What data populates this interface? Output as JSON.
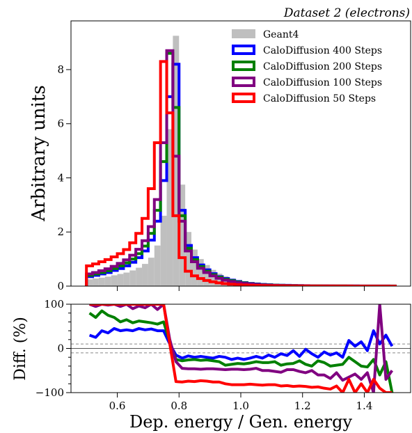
{
  "chart_data": [
    {
      "type": "histogram",
      "panel": "main",
      "title": "Dataset 2 (electrons)",
      "xlabel": "",
      "ylabel": "Arbitrary units",
      "xlim": [
        0.45,
        1.55
      ],
      "ylim": [
        0,
        9.8
      ],
      "yticks": [
        0,
        2,
        4,
        6,
        8
      ],
      "legend_position": "top-right",
      "bin_edges": [
        0.5,
        0.52,
        0.54,
        0.56,
        0.58,
        0.6,
        0.62,
        0.64,
        0.66,
        0.68,
        0.7,
        0.72,
        0.74,
        0.76,
        0.78,
        0.8,
        0.82,
        0.84,
        0.86,
        0.88,
        0.9,
        0.92,
        0.94,
        0.96,
        0.98,
        1.0,
        1.02,
        1.04,
        1.06,
        1.08,
        1.1,
        1.12,
        1.14,
        1.16,
        1.18,
        1.2,
        1.22,
        1.24,
        1.26,
        1.28,
        1.3,
        1.32,
        1.34,
        1.36,
        1.38,
        1.4,
        1.42,
        1.44,
        1.46,
        1.48,
        1.5
      ],
      "series": [
        {
          "name": "Geant4",
          "style": "filled",
          "color": "#bfbfbf",
          "values": [
            0.25,
            0.28,
            0.31,
            0.35,
            0.4,
            0.45,
            0.5,
            0.58,
            0.68,
            0.82,
            1.05,
            1.5,
            2.6,
            5.8,
            9.25,
            3.75,
            2.0,
            1.35,
            1.0,
            0.78,
            0.6,
            0.46,
            0.36,
            0.28,
            0.22,
            0.17,
            0.13,
            0.1,
            0.08,
            0.06,
            0.05,
            0.04,
            0.035,
            0.03,
            0.025,
            0.02,
            0.017,
            0.015,
            0.013,
            0.011,
            0.01,
            0.009,
            0.008,
            0.007,
            0.006,
            0.005,
            0.005,
            0.004,
            0.004,
            0.003
          ]
        },
        {
          "name": "CaloDiffusion 400 Steps",
          "style": "step",
          "color": "#0000ff",
          "values": [
            0.35,
            0.4,
            0.45,
            0.5,
            0.58,
            0.65,
            0.75,
            0.88,
            1.05,
            1.3,
            1.7,
            2.4,
            3.9,
            7.0,
            8.2,
            2.8,
            1.5,
            1.05,
            0.78,
            0.6,
            0.46,
            0.35,
            0.28,
            0.22,
            0.17,
            0.13,
            0.1,
            0.08,
            0.06,
            0.05,
            0.04,
            0.033,
            0.028,
            0.023,
            0.019,
            0.016,
            0.013,
            0.011,
            0.009,
            0.008,
            0.007,
            0.006,
            0.005,
            0.005,
            0.004,
            0.004,
            0.003,
            0.003,
            0.003,
            0.002
          ]
        },
        {
          "name": "CaloDiffusion 200 Steps",
          "style": "step",
          "color": "#008000",
          "values": [
            0.4,
            0.45,
            0.5,
            0.57,
            0.65,
            0.75,
            0.86,
            1.0,
            1.2,
            1.48,
            1.95,
            2.8,
            4.6,
            8.6,
            6.6,
            2.6,
            1.4,
            0.98,
            0.72,
            0.55,
            0.42,
            0.33,
            0.25,
            0.2,
            0.15,
            0.12,
            0.09,
            0.07,
            0.055,
            0.045,
            0.035,
            0.028,
            0.023,
            0.019,
            0.016,
            0.013,
            0.011,
            0.009,
            0.008,
            0.007,
            0.006,
            0.005,
            0.004,
            0.004,
            0.003,
            0.003,
            0.003,
            0.002,
            0.002,
            0.002
          ]
        },
        {
          "name": "CaloDiffusion 100 Steps",
          "style": "step",
          "color": "#800080",
          "values": [
            0.45,
            0.5,
            0.57,
            0.64,
            0.73,
            0.84,
            0.97,
            1.14,
            1.36,
            1.68,
            2.2,
            3.2,
            5.3,
            8.7,
            4.8,
            2.4,
            1.3,
            0.9,
            0.66,
            0.5,
            0.38,
            0.29,
            0.22,
            0.17,
            0.13,
            0.1,
            0.08,
            0.06,
            0.045,
            0.036,
            0.028,
            0.022,
            0.018,
            0.015,
            0.012,
            0.01,
            0.008,
            0.007,
            0.006,
            0.005,
            0.004,
            0.004,
            0.003,
            0.003,
            0.003,
            0.002,
            0.002,
            0.002,
            0.002,
            0.001
          ]
        },
        {
          "name": "CaloDiffusion 50 Steps",
          "style": "step",
          "color": "#ff0000",
          "values": [
            0.75,
            0.82,
            0.9,
            0.98,
            1.08,
            1.2,
            1.35,
            1.6,
            1.95,
            2.5,
            3.6,
            5.3,
            8.3,
            6.4,
            2.6,
            1.05,
            0.55,
            0.38,
            0.28,
            0.21,
            0.16,
            0.12,
            0.09,
            0.07,
            0.055,
            0.042,
            0.033,
            0.026,
            0.02,
            0.016,
            0.013,
            0.01,
            0.008,
            0.007,
            0.006,
            0.005,
            0.004,
            0.003,
            0.003,
            0.002,
            0.002,
            0.002,
            0.002,
            0.001,
            0.001,
            0.001,
            0.001,
            0.001,
            0.001,
            0.001
          ]
        }
      ]
    },
    {
      "type": "line",
      "panel": "ratio",
      "xlabel": "Dep. energy / Gen. energy",
      "ylabel": "Diff. (%)",
      "xlim": [
        0.45,
        1.55
      ],
      "ylim": [
        -100,
        100
      ],
      "xticks": [
        0.6,
        0.8,
        1.0,
        1.2,
        1.4
      ],
      "yticks": [
        -100,
        0,
        100
      ],
      "reference_lines": [
        0,
        10,
        -10
      ],
      "x": [
        0.51,
        0.53,
        0.55,
        0.57,
        0.59,
        0.61,
        0.63,
        0.65,
        0.67,
        0.69,
        0.71,
        0.73,
        0.75,
        0.77,
        0.79,
        0.81,
        0.83,
        0.85,
        0.87,
        0.89,
        0.91,
        0.93,
        0.95,
        0.97,
        0.99,
        1.01,
        1.03,
        1.05,
        1.07,
        1.09,
        1.11,
        1.13,
        1.15,
        1.17,
        1.19,
        1.21,
        1.23,
        1.25,
        1.27,
        1.29,
        1.31,
        1.33,
        1.35,
        1.37,
        1.39,
        1.41,
        1.43,
        1.45,
        1.47,
        1.49
      ],
      "series": [
        {
          "name": "CaloDiffusion 400 Steps",
          "color": "#0000ff",
          "values": [
            30,
            25,
            40,
            35,
            45,
            40,
            42,
            40,
            45,
            42,
            44,
            40,
            40,
            10,
            -15,
            -22,
            -17,
            -20,
            -18,
            -20,
            -22,
            -18,
            -20,
            -25,
            -22,
            -25,
            -22,
            -18,
            -22,
            -15,
            -20,
            -12,
            -16,
            -5,
            -18,
            -2,
            -12,
            -20,
            -8,
            -15,
            -10,
            -20,
            18,
            5,
            15,
            -5,
            40,
            10,
            30,
            5
          ]
        },
        {
          "name": "CaloDiffusion 200 Steps",
          "color": "#008000",
          "values": [
            80,
            70,
            85,
            75,
            70,
            60,
            65,
            58,
            62,
            60,
            58,
            55,
            60,
            15,
            -25,
            -28,
            -26,
            -25,
            -27,
            -26,
            -28,
            -30,
            -38,
            -36,
            -34,
            -35,
            -33,
            -30,
            -32,
            -32,
            -30,
            -38,
            -35,
            -34,
            -28,
            -36,
            -40,
            -28,
            -32,
            -40,
            -38,
            -36,
            -20,
            -30,
            -40,
            -42,
            -25,
            -60,
            -30,
            -100
          ]
        },
        {
          "name": "CaloDiffusion 100 Steps",
          "color": "#800080",
          "values": [
            100,
            95,
            100,
            98,
            100,
            95,
            100,
            90,
            96,
            92,
            100,
            88,
            100,
            20,
            -30,
            -45,
            -46,
            -46,
            -47,
            -46,
            -46,
            -47,
            -48,
            -47,
            -47,
            -48,
            -47,
            -45,
            -50,
            -50,
            -52,
            -54,
            -48,
            -48,
            -52,
            -55,
            -50,
            -60,
            -60,
            -68,
            -55,
            -72,
            -65,
            -58,
            -70,
            -55,
            -100,
            100,
            -70,
            -50
          ]
        },
        {
          "name": "CaloDiffusion 50 Steps",
          "color": "#ff0000",
          "values": [
            100,
            100,
            100,
            100,
            100,
            100,
            100,
            100,
            100,
            100,
            100,
            100,
            100,
            10,
            -75,
            -76,
            -74,
            -75,
            -73,
            -74,
            -76,
            -76,
            -80,
            -82,
            -82,
            -82,
            -81,
            -82,
            -83,
            -82,
            -82,
            -85,
            -84,
            -86,
            -85,
            -86,
            -88,
            -87,
            -90,
            -92,
            -85,
            -100,
            -70,
            -100,
            -80,
            -100,
            -70,
            -90,
            -100,
            -100
          ]
        }
      ]
    }
  ]
}
